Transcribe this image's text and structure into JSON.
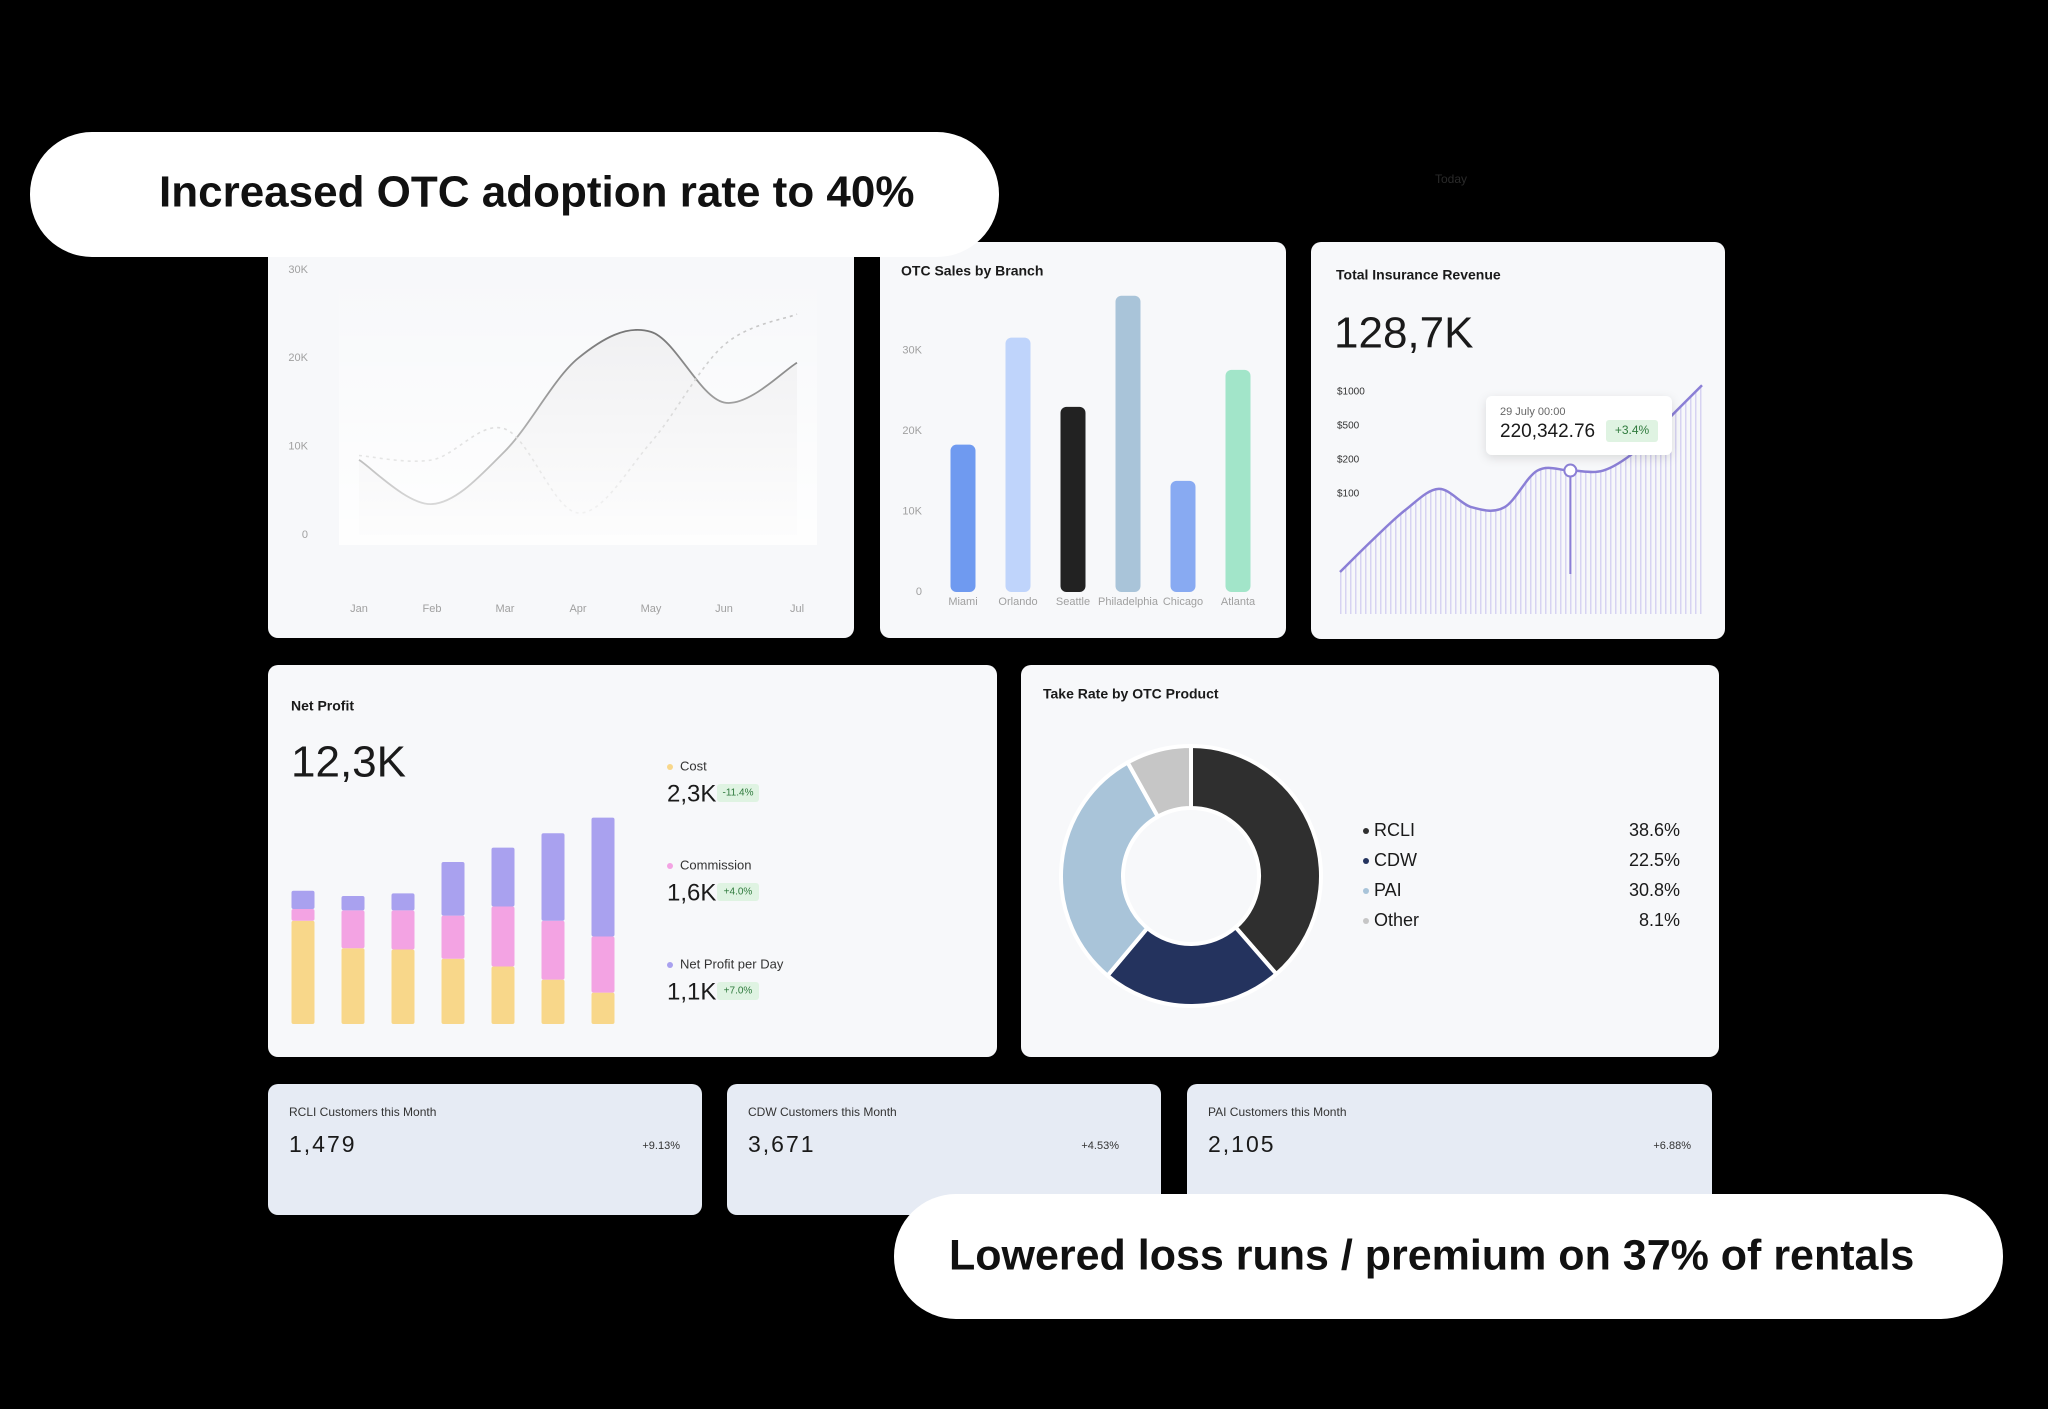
{
  "header_hint": "Today",
  "banners": [
    "Increased OTC adoption rate to 40%",
    "Lowered loss runs / premium on 37% of rentals"
  ],
  "chart_data": [
    {
      "type": "line",
      "categories": [
        "Jan",
        "Feb",
        "Mar",
        "Apr",
        "May",
        "Jun",
        "Jul"
      ],
      "ylim": [
        0,
        30000
      ],
      "yticks": [
        0,
        {
          "value": 10000,
          "label": "10K"
        },
        {
          "value": 20000,
          "label": "20K"
        },
        {
          "value": 30000,
          "label": "30K"
        }
      ],
      "series": [
        {
          "color": "#555555",
          "dashed": false,
          "values": [
            8500,
            3500,
            9500,
            20000,
            23000,
            15000,
            19500
          ]
        },
        {
          "color": "#bbbbbb",
          "dashed": true,
          "values": [
            9000,
            8500,
            12000,
            2500,
            10500,
            21500,
            25000
          ]
        }
      ]
    },
    {
      "type": "bar",
      "title": "OTC Sales by Branch",
      "categories": [
        "Miami",
        "Orlando",
        "Seattle",
        "Philadelphia",
        "Chicago",
        "Atlanta"
      ],
      "values": [
        18300,
        31600,
        23000,
        36800,
        13800,
        27600
      ],
      "colors": [
        "#6f9af0",
        "#bfd4fb",
        "#222222",
        "#a9c4d9",
        "#88aaf2",
        "#a2e5c9"
      ],
      "ylim": [
        0,
        40000
      ],
      "yticks": [
        0,
        {
          "value": 10000,
          "label": "10K"
        },
        {
          "value": 20000,
          "label": "20K"
        },
        {
          "value": 30000,
          "label": "30K"
        }
      ]
    },
    {
      "type": "line",
      "title": "Total Insurance Revenue",
      "headline": "128,7K",
      "categories": [
        null,
        null,
        null,
        null,
        null,
        null,
        null,
        null,
        null,
        null,
        null,
        null
      ],
      "values": [
        35,
        62,
        87,
        115,
        89,
        89,
        169,
        169,
        169,
        281,
        615,
        1100
      ],
      "color": "#8b7fd6",
      "ylim": [
        0,
        1100
      ],
      "yticks": [
        {
          "value": 1000,
          "label": "$1000"
        },
        {
          "value": 500,
          "label": "$500"
        },
        {
          "value": 200,
          "label": "$200"
        },
        {
          "value": 100,
          "label": "$100"
        }
      ],
      "tooltip": {
        "date": "29 July 00:00",
        "value": "220,342.76",
        "change": "+3.4%"
      }
    },
    {
      "type": "stacked_bar",
      "title": "Net Profit",
      "headline": "12,3K",
      "categories": [
        null,
        null,
        null,
        null,
        null,
        null,
        null
      ],
      "ylim": [
        0,
        160
      ],
      "series": [
        {
          "name": "Cost",
          "color": "#f8d78a",
          "values": [
            79,
            58,
            57,
            50,
            44,
            34,
            24
          ],
          "total": "2,3K",
          "change": "-11.4%"
        },
        {
          "name": "Commission",
          "color": "#f3a3e3",
          "values": [
            9,
            29,
            30,
            33,
            46,
            45,
            43
          ],
          "total": "1,6K",
          "change": "+4.0%"
        },
        {
          "name": "Net Profit per Day",
          "color": "#a9a1ef",
          "values": [
            14,
            11,
            13,
            41,
            45,
            67,
            91
          ],
          "total": "1,1K",
          "change": "+7.0%"
        }
      ]
    },
    {
      "type": "donut",
      "title": "Take Rate by OTC Product",
      "categories": [
        "RCLI",
        "CDW",
        "PAI",
        "Other"
      ],
      "values": [
        38.6,
        22.5,
        30.8,
        8.1
      ],
      "value_labels": [
        "38.6%",
        "22.5%",
        "30.8%",
        "8.1%"
      ],
      "colors": [
        "#2f2f2f",
        "#24335e",
        "#a9c4d9",
        "#c6c6c6"
      ]
    }
  ],
  "kpi_cards": [
    {
      "title": "RCLI Customers this Month",
      "value": "1,479",
      "change": "+9.13%"
    },
    {
      "title": "CDW Customers this Month",
      "value": "3,671",
      "change": "+4.53%"
    },
    {
      "title": "PAI Customers this Month",
      "value": "2,105",
      "change": "+6.88%"
    }
  ]
}
